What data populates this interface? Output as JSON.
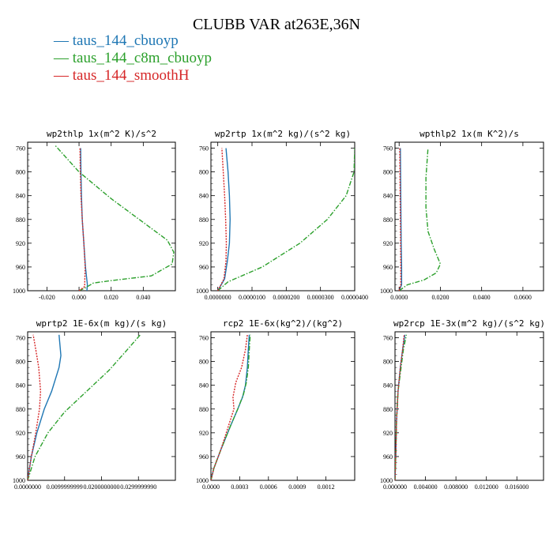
{
  "title": "CLUBB VAR at263E,36N",
  "legend": [
    {
      "label": "taus_144_cbuoyp",
      "color": "#1f77b4",
      "dash": "solid"
    },
    {
      "label": "taus_144_c8m_cbuoyp",
      "color": "#2ca02c",
      "dash": "dashdot"
    },
    {
      "label": "taus_144_smoothH",
      "color": "#d62728",
      "dash": "dotted"
    }
  ],
  "chart_data": [
    {
      "type": "line",
      "title": "wp2thlp  1x(m^2 K)/s^2",
      "xlim": [
        -0.032,
        0.06
      ],
      "ylim": [
        1000,
        750
      ],
      "xticks": [
        -0.02,
        0.0,
        0.02,
        0.04
      ],
      "xtick_labels": [
        "-0.020",
        "0.000",
        "0.020",
        "0.040"
      ],
      "yticks": [
        760,
        800,
        840,
        880,
        920,
        960,
        1000
      ],
      "ytick_labels": [
        "760",
        "800",
        "840",
        "880",
        "920",
        "960",
        "1000"
      ],
      "series": [
        {
          "name": "taus_144_cbuoyp",
          "x": [
            0.0049,
            0.0052,
            0.004,
            0.003,
            0.002,
            0.0015,
            0.0012,
            0.001
          ],
          "y": [
            1000,
            990,
            960,
            920,
            880,
            840,
            800,
            760
          ]
        },
        {
          "name": "taus_144_c8m_cbuoyp",
          "x": [
            0.0,
            0.004,
            0.009,
            0.02,
            0.045,
            0.058,
            0.059,
            0.055,
            0.04,
            0.02,
            0.0,
            -0.015
          ],
          "y": [
            1000,
            995,
            987,
            983,
            975,
            955,
            935,
            915,
            885,
            845,
            800,
            755
          ]
        },
        {
          "name": "taus_144_smoothH",
          "x": [
            0.0,
            0.0035,
            0.0038,
            0.003,
            0.002,
            0.0012,
            0.0008,
            0.0006
          ],
          "y": [
            1000,
            993,
            960,
            920,
            880,
            840,
            800,
            760
          ]
        }
      ]
    },
    {
      "type": "line",
      "title": "wp2rtp  1x(m^2 kg)/(s^2 kg)",
      "xlim": [
        -2e-06,
        4e-05
      ],
      "ylim": [
        1000,
        750
      ],
      "xticks": [
        0.0,
        1e-05,
        2e-05,
        3e-05,
        4e-05
      ],
      "xtick_labels": [
        "0.0000000",
        "0.0000100",
        "0.0000200",
        "0.0000300",
        "0.0000400"
      ],
      "yticks": [
        760,
        800,
        840,
        880,
        920,
        960,
        1000
      ],
      "ytick_labels": [
        "760",
        "800",
        "840",
        "880",
        "920",
        "960",
        "1000"
      ],
      "series": [
        {
          "name": "taus_144_cbuoyp",
          "x": [
            0.0,
            2e-06,
            2.8e-06,
            3.4e-06,
            3.6e-06,
            3.4e-06,
            3e-06,
            2.4e-06
          ],
          "y": [
            1000,
            980,
            950,
            920,
            880,
            840,
            800,
            760
          ]
        },
        {
          "name": "taus_144_c8m_cbuoyp",
          "x": [
            0.0,
            3e-06,
            1.3e-05,
            2.4e-05,
            3.2e-05,
            3.75e-05,
            3.98e-05,
            4e-05
          ],
          "y": [
            1000,
            985,
            960,
            920,
            880,
            840,
            800,
            760
          ]
        },
        {
          "name": "taus_144_smoothH",
          "x": [
            0.0,
            1.8e-06,
            2.4e-06,
            2.5e-06,
            2.3e-06,
            2e-06,
            1.6e-06,
            1.2e-06
          ],
          "y": [
            1000,
            980,
            950,
            920,
            880,
            840,
            800,
            760
          ]
        }
      ]
    },
    {
      "type": "line",
      "title": "wpthlp2  1x(m K^2)/s",
      "xlim": [
        -0.002,
        0.07
      ],
      "ylim": [
        1000,
        750
      ],
      "xticks": [
        0.0,
        0.02,
        0.04,
        0.06
      ],
      "xtick_labels": [
        "0.0000",
        "0.0200",
        "0.0400",
        "0.0600"
      ],
      "yticks": [
        760,
        800,
        840,
        880,
        920,
        960,
        1000
      ],
      "ytick_labels": [
        "760",
        "800",
        "840",
        "880",
        "920",
        "960",
        "1000"
      ],
      "series": [
        {
          "name": "taus_144_cbuoyp",
          "x": [
            0.0,
            0.0012,
            0.0012,
            0.001,
            0.0009,
            0.0008,
            0.0007,
            0.0006
          ],
          "y": [
            1000,
            990,
            960,
            920,
            880,
            840,
            800,
            760
          ]
        },
        {
          "name": "taus_144_c8m_cbuoyp",
          "x": [
            0.0,
            0.004,
            0.012,
            0.018,
            0.02,
            0.017,
            0.014,
            0.013,
            0.013,
            0.014
          ],
          "y": [
            1000,
            990,
            982,
            970,
            955,
            930,
            900,
            860,
            810,
            760
          ]
        },
        {
          "name": "taus_144_smoothH",
          "x": [
            0.0,
            0.0008,
            0.0008,
            0.0007,
            0.0006,
            0.0005,
            0.0004,
            0.0003
          ],
          "y": [
            1000,
            990,
            960,
            920,
            880,
            840,
            800,
            760
          ]
        }
      ]
    },
    {
      "type": "line",
      "title": "wprtp2  1E-6x(m kg)/(s kg)",
      "xlim": [
        0.0,
        0.04
      ],
      "ylim": [
        1000,
        750
      ],
      "xticks": [
        0.0,
        0.01,
        0.02,
        0.03
      ],
      "xtick_labels": [
        "0.0000000",
        "0.0099999999",
        "0.0200000000",
        "0.0299999990"
      ],
      "yticks": [
        760,
        800,
        840,
        880,
        920,
        960,
        1000
      ],
      "ytick_labels": [
        "760",
        "800",
        "840",
        "880",
        "920",
        "960",
        "1000"
      ],
      "series": [
        {
          "name": "taus_144_cbuoyp",
          "x": [
            0.0,
            0.001,
            0.0025,
            0.0045,
            0.0065,
            0.0085,
            0.009,
            0.0085
          ],
          "y": [
            1000,
            960,
            920,
            880,
            850,
            810,
            790,
            755
          ]
        },
        {
          "name": "taus_144_c8m_cbuoyp",
          "x": [
            0.0,
            0.002,
            0.0055,
            0.01,
            0.016,
            0.022,
            0.027,
            0.0305
          ],
          "y": [
            1000,
            960,
            920,
            885,
            850,
            815,
            780,
            755
          ]
        },
        {
          "name": "taus_144_smoothH",
          "x": [
            0.0,
            0.001,
            0.0022,
            0.0032,
            0.0035,
            0.003,
            0.0022,
            0.0015
          ],
          "y": [
            1000,
            960,
            920,
            880,
            850,
            810,
            780,
            755
          ]
        }
      ]
    },
    {
      "type": "line",
      "title": "rcp2  1E-6x(kg^2)/(kg^2)",
      "xlim": [
        0.0,
        0.0015
      ],
      "ylim": [
        1000,
        750
      ],
      "xticks": [
        0.0,
        0.0003,
        0.0006,
        0.0009,
        0.0012
      ],
      "xtick_labels": [
        "0.0000",
        "0.0003",
        "0.0006",
        "0.0009",
        "0.0012"
      ],
      "yticks": [
        760,
        800,
        840,
        880,
        920,
        960,
        1000
      ],
      "ytick_labels": [
        "760",
        "800",
        "840",
        "880",
        "920",
        "960",
        "1000"
      ],
      "series": [
        {
          "name": "taus_144_cbuoyp",
          "x": [
            0.0,
            3e-05,
            0.0001,
            0.0002,
            0.00028,
            0.00033,
            0.00036,
            0.00038,
            0.00039,
            0.0004
          ],
          "y": [
            1000,
            980,
            950,
            910,
            880,
            860,
            840,
            810,
            780,
            755
          ]
        },
        {
          "name": "taus_144_c8m_cbuoyp",
          "x": [
            0.0,
            3e-05,
            0.0001,
            0.0002,
            0.00028,
            0.00034,
            0.00037,
            0.00039,
            0.0004,
            0.00041
          ],
          "y": [
            1000,
            980,
            950,
            910,
            880,
            855,
            835,
            810,
            780,
            755
          ]
        },
        {
          "name": "taus_144_smoothH",
          "x": [
            0.0,
            3e-05,
            0.0001,
            0.00018,
            0.00024,
            0.00023,
            0.00026,
            0.00032,
            0.00036,
            0.00038
          ],
          "y": [
            1000,
            980,
            950,
            910,
            880,
            860,
            835,
            810,
            780,
            755
          ]
        }
      ]
    },
    {
      "type": "line",
      "title": "wp2rcp  1E-3x(m^2 kg)/(s^2 kg)",
      "xlim": [
        0.0,
        0.0195
      ],
      "ylim": [
        1000,
        750
      ],
      "xticks": [
        0.0,
        0.004,
        0.008,
        0.012,
        0.016
      ],
      "xtick_labels": [
        "0.000000",
        "0.004000",
        "0.008000",
        "0.012000",
        "0.016000"
      ],
      "yticks": [
        760,
        800,
        840,
        880,
        920,
        960,
        1000
      ],
      "ytick_labels": [
        "760",
        "800",
        "840",
        "880",
        "920",
        "960",
        "1000"
      ],
      "series": [
        {
          "name": "taus_144_cbuoyp",
          "x": [
            0.0,
            0.0001,
            0.0002,
            0.0004,
            0.0007,
            0.001,
            0.0013
          ],
          "y": [
            1000,
            960,
            900,
            850,
            810,
            780,
            755
          ]
        },
        {
          "name": "taus_144_c8m_cbuoyp",
          "x": [
            0.0,
            0.0001,
            0.0002,
            0.0004,
            0.0008,
            0.0011,
            0.0015
          ],
          "y": [
            1000,
            960,
            900,
            850,
            810,
            780,
            755
          ]
        },
        {
          "name": "taus_144_smoothH",
          "x": [
            0.0,
            0.0001,
            0.0002,
            0.0004,
            0.0007,
            0.001,
            0.0012
          ],
          "y": [
            1000,
            960,
            900,
            850,
            810,
            780,
            755
          ]
        }
      ]
    }
  ]
}
